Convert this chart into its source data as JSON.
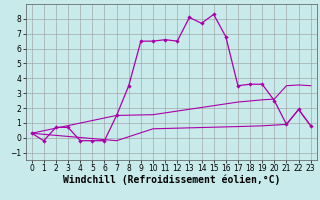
{
  "xlabel": "Windchill (Refroidissement éolien,°C)",
  "xlim": [
    -0.5,
    23.5
  ],
  "ylim": [
    -1.5,
    9.0
  ],
  "bg_color": "#c8eaea",
  "line_color": "#aa00aa",
  "grid_color": "#999999",
  "main_x": [
    0,
    1,
    2,
    3,
    4,
    5,
    6,
    7,
    8,
    9,
    10,
    11,
    12,
    13,
    14,
    15,
    16,
    17,
    18,
    19,
    20,
    21,
    22,
    23
  ],
  "main_y": [
    0.3,
    -0.2,
    0.7,
    0.7,
    -0.2,
    -0.2,
    -0.2,
    1.5,
    3.5,
    6.5,
    6.5,
    6.6,
    6.5,
    8.1,
    7.7,
    8.3,
    6.8,
    3.5,
    3.6,
    3.6,
    2.5,
    0.9,
    1.9,
    0.8
  ],
  "mid_x": [
    0,
    7,
    10,
    17,
    19,
    20,
    21,
    22,
    23
  ],
  "mid_y": [
    0.3,
    1.5,
    1.55,
    2.4,
    2.55,
    2.6,
    3.5,
    3.55,
    3.5
  ],
  "low_x": [
    0,
    7,
    10,
    17,
    19,
    20,
    21,
    22,
    23
  ],
  "low_y": [
    0.3,
    -0.2,
    0.6,
    0.75,
    0.8,
    0.85,
    0.9,
    1.9,
    0.8
  ],
  "yticks": [
    -1,
    0,
    1,
    2,
    3,
    4,
    5,
    6,
    7,
    8
  ],
  "xticks": [
    0,
    1,
    2,
    3,
    4,
    5,
    6,
    7,
    8,
    9,
    10,
    11,
    12,
    13,
    14,
    15,
    16,
    17,
    18,
    19,
    20,
    21,
    22,
    23
  ],
  "tick_fontsize": 5.5,
  "xlabel_fontsize": 7.0
}
